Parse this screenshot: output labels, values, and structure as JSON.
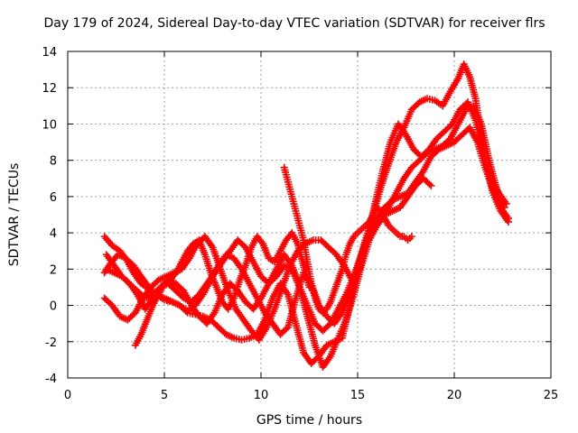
{
  "chart_data": {
    "type": "scatter",
    "title": "Day 179 of 2024, Sidereal Day-to-day VTEC variation (SDTVAR) for receiver flrs",
    "xlabel": "GPS time / hours",
    "ylabel": "SDTVAR / TECUs",
    "xlim": [
      0,
      25
    ],
    "ylim": [
      -4,
      14
    ],
    "xticks": [
      0,
      5,
      10,
      15,
      20,
      25
    ],
    "yticks": [
      -4,
      -2,
      0,
      2,
      4,
      6,
      8,
      10,
      12,
      14
    ],
    "grid": true,
    "marker": "plus",
    "color": "#ff0000",
    "series": [
      {
        "x": [
          1.9,
          2.3,
          2.7,
          3.0,
          3.4,
          3.8,
          4.2,
          4.6,
          5.0,
          5.4,
          5.8,
          6.2,
          6.6,
          7.0,
          7.4,
          7.8,
          8.2,
          8.6,
          9.0,
          9.4,
          9.8,
          10.2,
          10.6,
          11.0,
          11.4,
          11.8,
          12.2,
          12.6,
          13.0,
          13.4,
          13.8,
          14.2,
          14.6,
          15.0,
          15.4,
          15.8,
          16.2,
          16.6,
          17.0,
          17.4,
          17.8,
          18.2,
          18.6,
          19.0,
          19.4,
          19.8,
          20.2,
          20.5,
          20.8,
          21.1,
          21.4,
          21.7,
          22.0,
          22.4,
          22.8
        ],
        "y": [
          3.8,
          3.3,
          3.0,
          2.6,
          1.8,
          1.2,
          0.9,
          0.6,
          0.3,
          0.2,
          0.0,
          -0.4,
          -0.5,
          -0.6,
          -0.8,
          -1.2,
          -1.6,
          -1.8,
          -1.9,
          -1.8,
          -1.6,
          -0.8,
          0.4,
          1.2,
          0.6,
          -1.0,
          -2.6,
          -3.2,
          -2.8,
          -2.2,
          -2.0,
          -1.8,
          0.0,
          2.0,
          3.6,
          5.0,
          6.5,
          7.8,
          9.0,
          9.8,
          10.8,
          11.2,
          11.4,
          11.3,
          11.0,
          11.8,
          12.5,
          13.3,
          12.6,
          11.4,
          9.2,
          7.5,
          6.2,
          5.2,
          4.6
        ]
      },
      {
        "x": [
          1.9,
          2.2,
          2.6,
          3.0,
          3.4,
          3.8,
          4.2,
          4.6,
          5.0,
          5.4,
          5.8,
          6.2,
          6.6,
          7.0,
          7.4,
          7.8,
          8.2,
          8.6,
          9.0,
          9.4,
          9.8,
          10.2,
          10.6,
          11.0,
          11.4,
          11.8,
          12.2,
          12.6,
          13.0,
          13.4,
          13.8,
          14.2,
          14.6,
          15.0,
          15.4,
          15.8,
          16.2,
          16.6,
          17.0,
          17.4,
          17.8,
          18.2,
          18.6,
          19.0,
          19.4,
          19.8,
          20.2,
          20.6,
          21.0,
          21.4,
          21.8,
          22.2,
          22.6
        ],
        "y": [
          1.8,
          2.3,
          2.8,
          2.6,
          2.2,
          1.6,
          1.0,
          0.6,
          0.4,
          0.2,
          0.0,
          -0.3,
          0.0,
          0.6,
          1.4,
          2.2,
          2.8,
          2.6,
          2.0,
          1.2,
          0.4,
          -0.4,
          -1.0,
          -1.6,
          -1.2,
          0.4,
          1.8,
          1.2,
          0.0,
          -0.6,
          -1.0,
          -0.4,
          0.8,
          2.2,
          3.4,
          4.2,
          4.8,
          5.4,
          6.2,
          7.0,
          7.6,
          8.0,
          8.4,
          8.6,
          8.8,
          9.2,
          10.0,
          10.8,
          11.0,
          10.0,
          8.0,
          6.4,
          5.4
        ]
      },
      {
        "x": [
          1.9,
          2.3,
          2.7,
          3.1,
          3.5,
          3.9,
          4.3,
          4.7,
          5.1,
          5.5,
          5.9,
          6.3,
          6.7,
          7.1,
          7.5,
          7.9,
          8.3,
          8.7,
          9.1,
          9.5,
          9.9,
          10.3,
          10.7,
          11.1,
          11.5,
          11.9,
          12.3,
          12.7,
          13.1,
          13.5,
          13.9,
          14.3,
          14.7,
          15.1,
          15.5,
          15.9,
          16.3,
          16.7,
          17.1,
          17.5,
          17.9,
          18.3,
          18.7,
          19.1,
          19.5,
          19.9,
          20.3,
          20.7,
          21.1,
          21.5,
          21.9,
          22.3,
          22.7
        ],
        "y": [
          0.4,
          0.0,
          -0.6,
          -0.8,
          -0.4,
          0.4,
          1.0,
          1.4,
          1.6,
          1.8,
          2.0,
          2.6,
          3.4,
          3.8,
          3.2,
          2.0,
          0.8,
          -0.2,
          -0.8,
          -1.4,
          -1.9,
          -1.2,
          -0.2,
          1.0,
          2.2,
          3.0,
          3.4,
          3.6,
          3.6,
          3.2,
          2.8,
          2.2,
          1.4,
          2.0,
          3.6,
          5.6,
          7.4,
          9.0,
          10.0,
          9.4,
          8.6,
          8.2,
          8.6,
          9.2,
          9.6,
          10.0,
          10.8,
          11.2,
          10.2,
          8.4,
          7.0,
          6.2,
          5.6
        ]
      },
      {
        "x": [
          2.0,
          2.4,
          2.8,
          3.2,
          3.6,
          4.0,
          4.4,
          4.8,
          5.2,
          5.6,
          6.0,
          6.4,
          6.8,
          7.2,
          7.6,
          8.0,
          8.4,
          8.8,
          9.2,
          9.6,
          10.0,
          10.4,
          10.8,
          11.2,
          11.6,
          12.0,
          12.4,
          12.8,
          13.2,
          13.6,
          14.0,
          14.4,
          14.8,
          15.2,
          15.6,
          16.0,
          16.4,
          16.8,
          17.2,
          17.6,
          18.0,
          18.4,
          18.8,
          19.2,
          19.6,
          20.0,
          20.4,
          20.8,
          21.2,
          21.6,
          22.0,
          22.4,
          22.8
        ],
        "y": [
          2.8,
          2.2,
          1.6,
          1.2,
          0.8,
          0.4,
          0.6,
          1.0,
          1.2,
          0.8,
          0.4,
          0.2,
          0.6,
          1.2,
          1.8,
          2.4,
          3.0,
          3.6,
          3.2,
          2.4,
          1.6,
          1.2,
          1.6,
          2.2,
          2.0,
          1.0,
          0.0,
          -1.0,
          -1.4,
          -1.0,
          -0.2,
          0.6,
          1.6,
          2.8,
          4.0,
          4.8,
          5.4,
          5.8,
          6.0,
          6.2,
          6.8,
          7.4,
          8.2,
          8.6,
          8.8,
          9.0,
          9.4,
          9.8,
          9.0,
          7.6,
          6.4,
          5.4,
          4.8
        ]
      },
      {
        "x": [
          2.0,
          2.4,
          2.8,
          3.2,
          3.6,
          4.0,
          4.4,
          4.8,
          5.2,
          5.6,
          6.0,
          6.4,
          6.8,
          7.2,
          7.6,
          8.0,
          8.4,
          8.8,
          9.2,
          9.6,
          10.0,
          10.4,
          10.8,
          11.2,
          11.6,
          12.0,
          12.4,
          12.8,
          13.2,
          13.6,
          14.0,
          14.4,
          14.8,
          15.2,
          15.6,
          16.0,
          16.4,
          16.8,
          17.2,
          17.6,
          18.0,
          18.4,
          18.8
        ],
        "y": [
          2.0,
          1.8,
          1.6,
          1.2,
          0.6,
          -0.2,
          0.4,
          1.0,
          1.4,
          1.2,
          0.8,
          0.0,
          -0.6,
          -1.0,
          -0.4,
          0.6,
          1.2,
          0.8,
          0.2,
          -0.2,
          0.4,
          1.2,
          2.0,
          2.8,
          2.2,
          1.0,
          -0.6,
          -2.2,
          -3.4,
          -2.8,
          -1.8,
          -0.8,
          0.6,
          2.2,
          3.6,
          4.4,
          5.0,
          5.2,
          5.4,
          6.0,
          6.6,
          7.0,
          6.6
        ]
      },
      {
        "x": [
          3.5,
          3.8,
          4.1,
          4.4,
          4.7,
          5.0,
          5.3,
          5.6,
          5.9,
          6.2,
          6.5,
          6.8,
          7.1,
          7.4,
          7.7,
          8.0,
          8.3,
          8.6,
          8.9,
          9.2,
          9.5,
          9.8,
          10.1,
          10.4,
          10.7,
          11.0,
          11.3,
          11.6,
          11.9,
          12.2,
          12.5
        ],
        "y": [
          -2.2,
          -1.6,
          -0.8,
          0.0,
          0.6,
          1.2,
          1.4,
          1.8,
          2.4,
          3.0,
          3.4,
          3.6,
          2.8,
          1.8,
          1.0,
          0.2,
          -0.2,
          0.4,
          1.4,
          2.2,
          3.2,
          3.8,
          3.4,
          2.6,
          2.4,
          3.0,
          3.6,
          4.0,
          3.4,
          2.2,
          1.0
        ]
      },
      {
        "x": [
          11.2,
          11.4,
          11.6,
          11.8,
          12.0,
          12.2,
          12.4,
          12.6,
          12.8,
          13.0,
          13.2,
          13.4,
          13.6,
          13.8,
          14.0,
          14.2,
          14.4,
          14.6,
          14.8,
          15.0,
          15.2,
          15.4,
          15.6,
          15.8,
          16.0,
          16.2,
          16.4,
          16.6,
          16.8,
          17.0,
          17.2,
          17.4,
          17.6,
          17.8
        ],
        "y": [
          7.6,
          6.8,
          6.0,
          5.2,
          4.4,
          3.6,
          2.4,
          1.2,
          0.4,
          -0.2,
          -0.4,
          -0.2,
          0.2,
          0.8,
          1.4,
          2.0,
          2.8,
          3.4,
          3.8,
          4.0,
          4.2,
          4.4,
          4.6,
          5.0,
          5.4,
          5.2,
          4.8,
          4.4,
          4.2,
          4.0,
          3.8,
          3.8,
          3.6,
          3.8
        ]
      }
    ]
  }
}
